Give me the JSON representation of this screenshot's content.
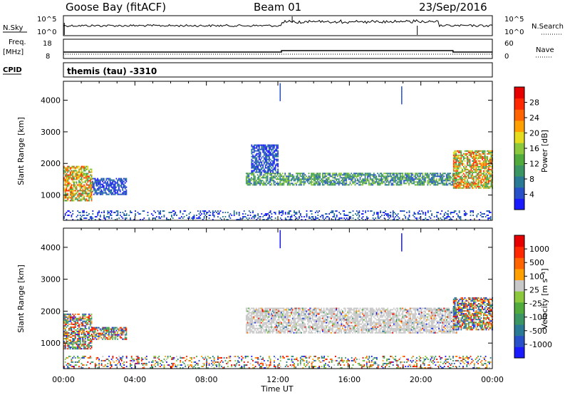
{
  "header": {
    "station": "Goose Bay (fitACF)",
    "beam": "Beam 01",
    "date": "23/Sep/2016"
  },
  "top_panels": {
    "nsky_label": "N.Sky",
    "nsearch_label": "N.Search",
    "noise_ticks": [
      "10^5",
      "10^0"
    ],
    "freq_label": "Freq.",
    "freq_unit": "[MHz]",
    "freq_ticks": [
      "18",
      "8"
    ],
    "nave_label": "Nave",
    "nave_ticks": [
      "60",
      "0"
    ],
    "cpid_label": "CPID",
    "cpid_value": "themis (tau) -3310"
  },
  "colors": {
    "power_scale": [
      "#1a1aff",
      "#2850c8",
      "#2a7a96",
      "#3c9664",
      "#50aa3c",
      "#8cc83c",
      "#e6dc1e",
      "#ffa000",
      "#ff6400",
      "#ff2800",
      "#e60000"
    ],
    "velocity_scale": [
      "#1a1aff",
      "#2850c8",
      "#2a7a96",
      "#3c9664",
      "#50aa3c",
      "#8cc83c",
      "#c8c8c8",
      "#ffa000",
      "#ff6400",
      "#ff2800",
      "#e60000"
    ]
  },
  "chart_data": [
    {
      "type": "heatmap",
      "name": "power",
      "ylabel": "Slant Range [km]",
      "yticks": [
        "4000",
        "3000",
        "2000",
        "1000"
      ],
      "ylim": [
        200,
        4600
      ],
      "xlabel": "Time UT",
      "xticks": [
        "00:00",
        "04:00",
        "08:00",
        "12:00",
        "16:00",
        "20:00",
        "00:00"
      ],
      "xlim_hours": [
        0,
        24
      ],
      "colorbar_label": "Power [dB]",
      "colorbar_ticks": [
        "28",
        "24",
        "20",
        "16",
        "12",
        "8",
        "4"
      ],
      "echo_regions": [
        {
          "t_start": 0.0,
          "t_end": 1.6,
          "range_lo": 800,
          "range_hi": 1900,
          "level": "high"
        },
        {
          "t_start": 1.6,
          "t_end": 3.5,
          "range_lo": 1000,
          "range_hi": 1500,
          "level": "low"
        },
        {
          "t_start": 10.2,
          "t_end": 22.0,
          "range_lo": 1300,
          "range_hi": 1700,
          "level": "mid"
        },
        {
          "t_start": 10.5,
          "t_end": 12.0,
          "range_lo": 1700,
          "range_hi": 2600,
          "level": "low"
        },
        {
          "t_start": 21.8,
          "t_end": 24.0,
          "range_lo": 1200,
          "range_hi": 2400,
          "level": "high"
        },
        {
          "t_start": 0.0,
          "t_end": 24.0,
          "range_lo": 200,
          "range_hi": 500,
          "level": "low"
        }
      ]
    },
    {
      "type": "heatmap",
      "name": "velocity",
      "ylabel": "Slant Range [km]",
      "yticks": [
        "4000",
        "3000",
        "2000",
        "1000"
      ],
      "ylim": [
        200,
        4600
      ],
      "xlabel": "Time UT",
      "xticks": [
        "00:00",
        "04:00",
        "08:00",
        "12:00",
        "16:00",
        "20:00",
        "00:00"
      ],
      "xlim_hours": [
        0,
        24
      ],
      "colorbar_label": "Velocity [m s^-1]",
      "colorbar_ticks": [
        "1000",
        "500",
        "100",
        "25",
        "-25",
        "-100",
        "-500",
        "-1000"
      ],
      "echo_regions": [
        {
          "t_start": 0.0,
          "t_end": 1.6,
          "range_lo": 800,
          "range_hi": 1900,
          "level": "mixed"
        },
        {
          "t_start": 1.6,
          "t_end": 3.5,
          "range_lo": 1100,
          "range_hi": 1500,
          "level": "mixed"
        },
        {
          "t_start": 10.2,
          "t_end": 22.0,
          "range_lo": 1300,
          "range_hi": 2100,
          "level": "ground"
        },
        {
          "t_start": 21.8,
          "t_end": 24.0,
          "range_lo": 1400,
          "range_hi": 2400,
          "level": "mixed"
        },
        {
          "t_start": 0.0,
          "t_end": 24.0,
          "range_lo": 200,
          "range_hi": 600,
          "level": "mixed"
        }
      ]
    }
  ]
}
